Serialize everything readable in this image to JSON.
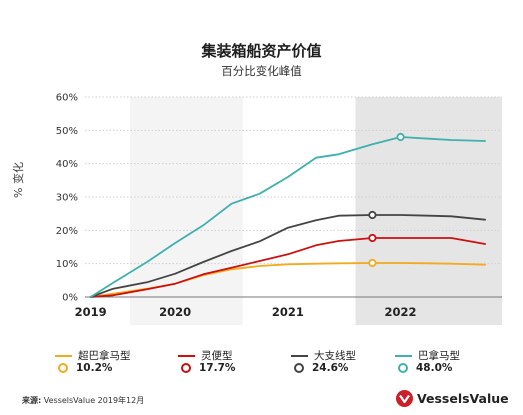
{
  "header": {
    "title": "集装箱船资产价值",
    "subtitle": "百分比变化峰值"
  },
  "colors": {
    "super_panamax": "#f2ab1d",
    "feeder": "#cc0f0f",
    "large_feeder": "#444444",
    "panamax": "#3fb0ad",
    "band_light": "#f4f4f4",
    "band_dark": "#e5e5e5",
    "grid": "#cfcfcf"
  },
  "chart_data": {
    "type": "line",
    "title": "集装箱船资产价值",
    "subtitle": "百分比变化峰值",
    "ylabel": "% 变化",
    "xlabel": "",
    "ylim": [
      0,
      60
    ],
    "yticks": [
      0,
      10,
      20,
      30,
      40,
      50,
      60
    ],
    "ytick_labels": [
      "0%",
      "10%",
      "20%",
      "30%",
      "40%",
      "50%",
      "60%"
    ],
    "xlim": [
      2018.95,
      2022.65
    ],
    "year_labels": [
      {
        "label": "2019",
        "x": 2019.0
      },
      {
        "label": "2020",
        "x": 2019.75
      },
      {
        "label": "2021",
        "x": 2020.75
      },
      {
        "label": "2022",
        "x": 2021.75
      }
    ],
    "bands": [
      {
        "from": 2019.35,
        "to": 2020.35,
        "shade": "light"
      },
      {
        "from": 2020.35,
        "to": 2021.35,
        "shade": "none"
      },
      {
        "from": 2021.35,
        "to": 2022.65,
        "shade": "dark"
      }
    ],
    "x": [
      2019.0,
      2019.2,
      2019.5,
      2019.75,
      2020.0,
      2020.25,
      2020.5,
      2020.75,
      2021.0,
      2021.2,
      2021.5,
      2021.75,
      2022.0,
      2022.2,
      2022.5
    ],
    "series": [
      {
        "name": "超巴拿马型",
        "color_key": "super_panamax",
        "values": [
          0,
          1.0,
          2.5,
          4.0,
          6.5,
          8.3,
          9.3,
          9.8,
          10.0,
          10.1,
          10.2,
          10.2,
          10.1,
          10.0,
          9.7
        ],
        "peak_index": 10,
        "peak_label": "10.2%"
      },
      {
        "name": "灵便型",
        "color_key": "feeder",
        "values": [
          0,
          0.5,
          2.3,
          4.0,
          6.8,
          8.8,
          10.8,
          12.8,
          15.5,
          16.8,
          17.7,
          17.7,
          17.7,
          17.7,
          15.9
        ],
        "peak_index": 10,
        "peak_label": "17.7%"
      },
      {
        "name": "大支线型",
        "color_key": "large_feeder",
        "values": [
          0,
          2.5,
          4.4,
          7.0,
          10.5,
          13.8,
          16.7,
          20.8,
          23.0,
          24.4,
          24.6,
          24.6,
          24.4,
          24.2,
          23.2
        ],
        "peak_index": 10,
        "peak_label": "24.6%"
      },
      {
        "name": "巴拿马型",
        "color_key": "panamax",
        "values": [
          0,
          4.3,
          10.5,
          16.2,
          21.5,
          28.0,
          31.0,
          36.0,
          41.8,
          42.8,
          45.8,
          48.0,
          47.5,
          47.1,
          46.8
        ],
        "peak_index": 11,
        "peak_label": "48.0%"
      }
    ]
  },
  "legend": {
    "items": [
      {
        "name": "超巴拿马型",
        "peak": "10.2%",
        "color_key": "super_panamax"
      },
      {
        "name": "灵便型",
        "peak": "17.7%",
        "color_key": "feeder"
      },
      {
        "name": "大支线型",
        "peak": "24.6%",
        "color_key": "large_feeder"
      },
      {
        "name": "巴拿马型",
        "peak": "48.0%",
        "color_key": "panamax"
      }
    ]
  },
  "footer": {
    "source_label": "来源:",
    "source_text": "VesselsValue 2019年12月",
    "logo_text": "VesselsValue",
    "logo_color": "#cc1f2a"
  }
}
